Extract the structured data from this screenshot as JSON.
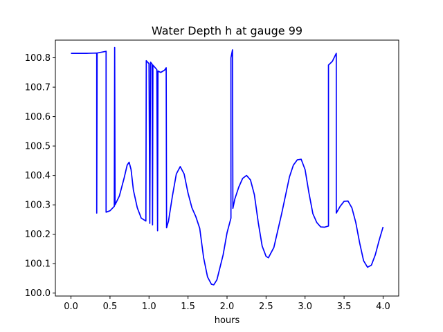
{
  "chart_data": {
    "type": "line",
    "title": "Water Depth h at gauge 99",
    "xlabel": "hours",
    "ylabel": "",
    "xlim": [
      -0.2,
      4.2
    ],
    "ylim": [
      99.99,
      100.86
    ],
    "xticks": [
      0.0,
      0.5,
      1.0,
      1.5,
      2.0,
      2.5,
      3.0,
      3.5,
      4.0
    ],
    "xtick_labels": [
      "0.0",
      "0.5",
      "1.0",
      "1.5",
      "2.0",
      "2.5",
      "3.0",
      "3.5",
      "4.0"
    ],
    "yticks": [
      100.0,
      100.1,
      100.2,
      100.3,
      100.4,
      100.5,
      100.6,
      100.7,
      100.8
    ],
    "ytick_labels": [
      "100.0",
      "100.1",
      "100.2",
      "100.3",
      "100.4",
      "100.5",
      "100.6",
      "100.7",
      "100.8"
    ],
    "grid": false,
    "series": [
      {
        "color": "#0000ff",
        "points": [
          [
            0.0,
            100.815
          ],
          [
            0.2,
            100.815
          ],
          [
            0.33,
            100.816
          ],
          [
            0.33,
            100.272
          ],
          [
            0.335,
            100.816
          ],
          [
            0.45,
            100.822
          ],
          [
            0.45,
            100.275
          ],
          [
            0.5,
            100.28
          ],
          [
            0.555,
            100.295
          ],
          [
            0.56,
            100.835
          ],
          [
            0.565,
            100.3
          ],
          [
            0.62,
            100.33
          ],
          [
            0.68,
            100.39
          ],
          [
            0.72,
            100.435
          ],
          [
            0.745,
            100.445
          ],
          [
            0.77,
            100.42
          ],
          [
            0.8,
            100.35
          ],
          [
            0.85,
            100.29
          ],
          [
            0.9,
            100.255
          ],
          [
            0.96,
            100.245
          ],
          [
            0.965,
            100.79
          ],
          [
            1.0,
            100.78
          ],
          [
            1.01,
            100.237
          ],
          [
            1.02,
            100.785
          ],
          [
            1.04,
            100.778
          ],
          [
            1.045,
            100.232
          ],
          [
            1.05,
            100.775
          ],
          [
            1.1,
            100.76
          ],
          [
            1.11,
            100.212
          ],
          [
            1.115,
            100.755
          ],
          [
            1.15,
            100.75
          ],
          [
            1.2,
            100.758
          ],
          [
            1.22,
            100.766
          ],
          [
            1.225,
            100.222
          ],
          [
            1.25,
            100.245
          ],
          [
            1.3,
            100.33
          ],
          [
            1.35,
            100.405
          ],
          [
            1.4,
            100.43
          ],
          [
            1.45,
            100.405
          ],
          [
            1.5,
            100.34
          ],
          [
            1.55,
            100.29
          ],
          [
            1.6,
            100.26
          ],
          [
            1.65,
            100.22
          ],
          [
            1.7,
            100.12
          ],
          [
            1.75,
            100.055
          ],
          [
            1.8,
            100.03
          ],
          [
            1.83,
            100.028
          ],
          [
            1.87,
            100.045
          ],
          [
            1.95,
            100.13
          ],
          [
            2.0,
            100.205
          ],
          [
            2.05,
            100.255
          ],
          [
            2.05,
            100.8
          ],
          [
            2.07,
            100.827
          ],
          [
            2.075,
            100.288
          ],
          [
            2.1,
            100.32
          ],
          [
            2.15,
            100.36
          ],
          [
            2.2,
            100.39
          ],
          [
            2.25,
            100.4
          ],
          [
            2.3,
            100.385
          ],
          [
            2.35,
            100.335
          ],
          [
            2.4,
            100.24
          ],
          [
            2.45,
            100.16
          ],
          [
            2.5,
            100.125
          ],
          [
            2.53,
            100.12
          ],
          [
            2.6,
            100.155
          ],
          [
            2.7,
            100.27
          ],
          [
            2.8,
            100.395
          ],
          [
            2.85,
            100.435
          ],
          [
            2.9,
            100.453
          ],
          [
            2.95,
            100.455
          ],
          [
            3.0,
            100.42
          ],
          [
            3.05,
            100.34
          ],
          [
            3.1,
            100.27
          ],
          [
            3.15,
            100.24
          ],
          [
            3.2,
            100.225
          ],
          [
            3.25,
            100.224
          ],
          [
            3.3,
            100.228
          ],
          [
            3.3,
            100.775
          ],
          [
            3.35,
            100.788
          ],
          [
            3.4,
            100.815
          ],
          [
            3.4,
            100.272
          ],
          [
            3.45,
            100.295
          ],
          [
            3.5,
            100.312
          ],
          [
            3.55,
            100.313
          ],
          [
            3.6,
            100.29
          ],
          [
            3.65,
            100.24
          ],
          [
            3.7,
            100.17
          ],
          [
            3.75,
            100.11
          ],
          [
            3.8,
            100.088
          ],
          [
            3.85,
            100.095
          ],
          [
            3.9,
            100.13
          ],
          [
            3.95,
            100.18
          ],
          [
            4.0,
            100.225
          ]
        ]
      }
    ]
  }
}
